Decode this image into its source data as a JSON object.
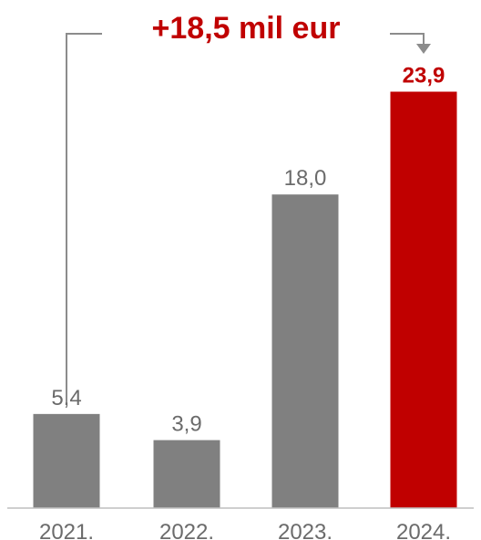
{
  "chart_data": {
    "type": "bar",
    "categories": [
      "2021.",
      "2022.",
      "2023.",
      "2024."
    ],
    "values": [
      5.4,
      3.9,
      18.0,
      23.9
    ],
    "value_labels": [
      "5,4",
      "3,9",
      "18,0",
      "23,9"
    ],
    "ylim": [
      0,
      25
    ],
    "grid": false,
    "highlight_index": 3,
    "annotation": "+18,5 mil eur"
  },
  "colors": {
    "bar": "#808080",
    "highlight": "#c00000",
    "text": "#6b6b6b",
    "bracket": "#8c8c8c",
    "axis": "#bfbfbf"
  }
}
